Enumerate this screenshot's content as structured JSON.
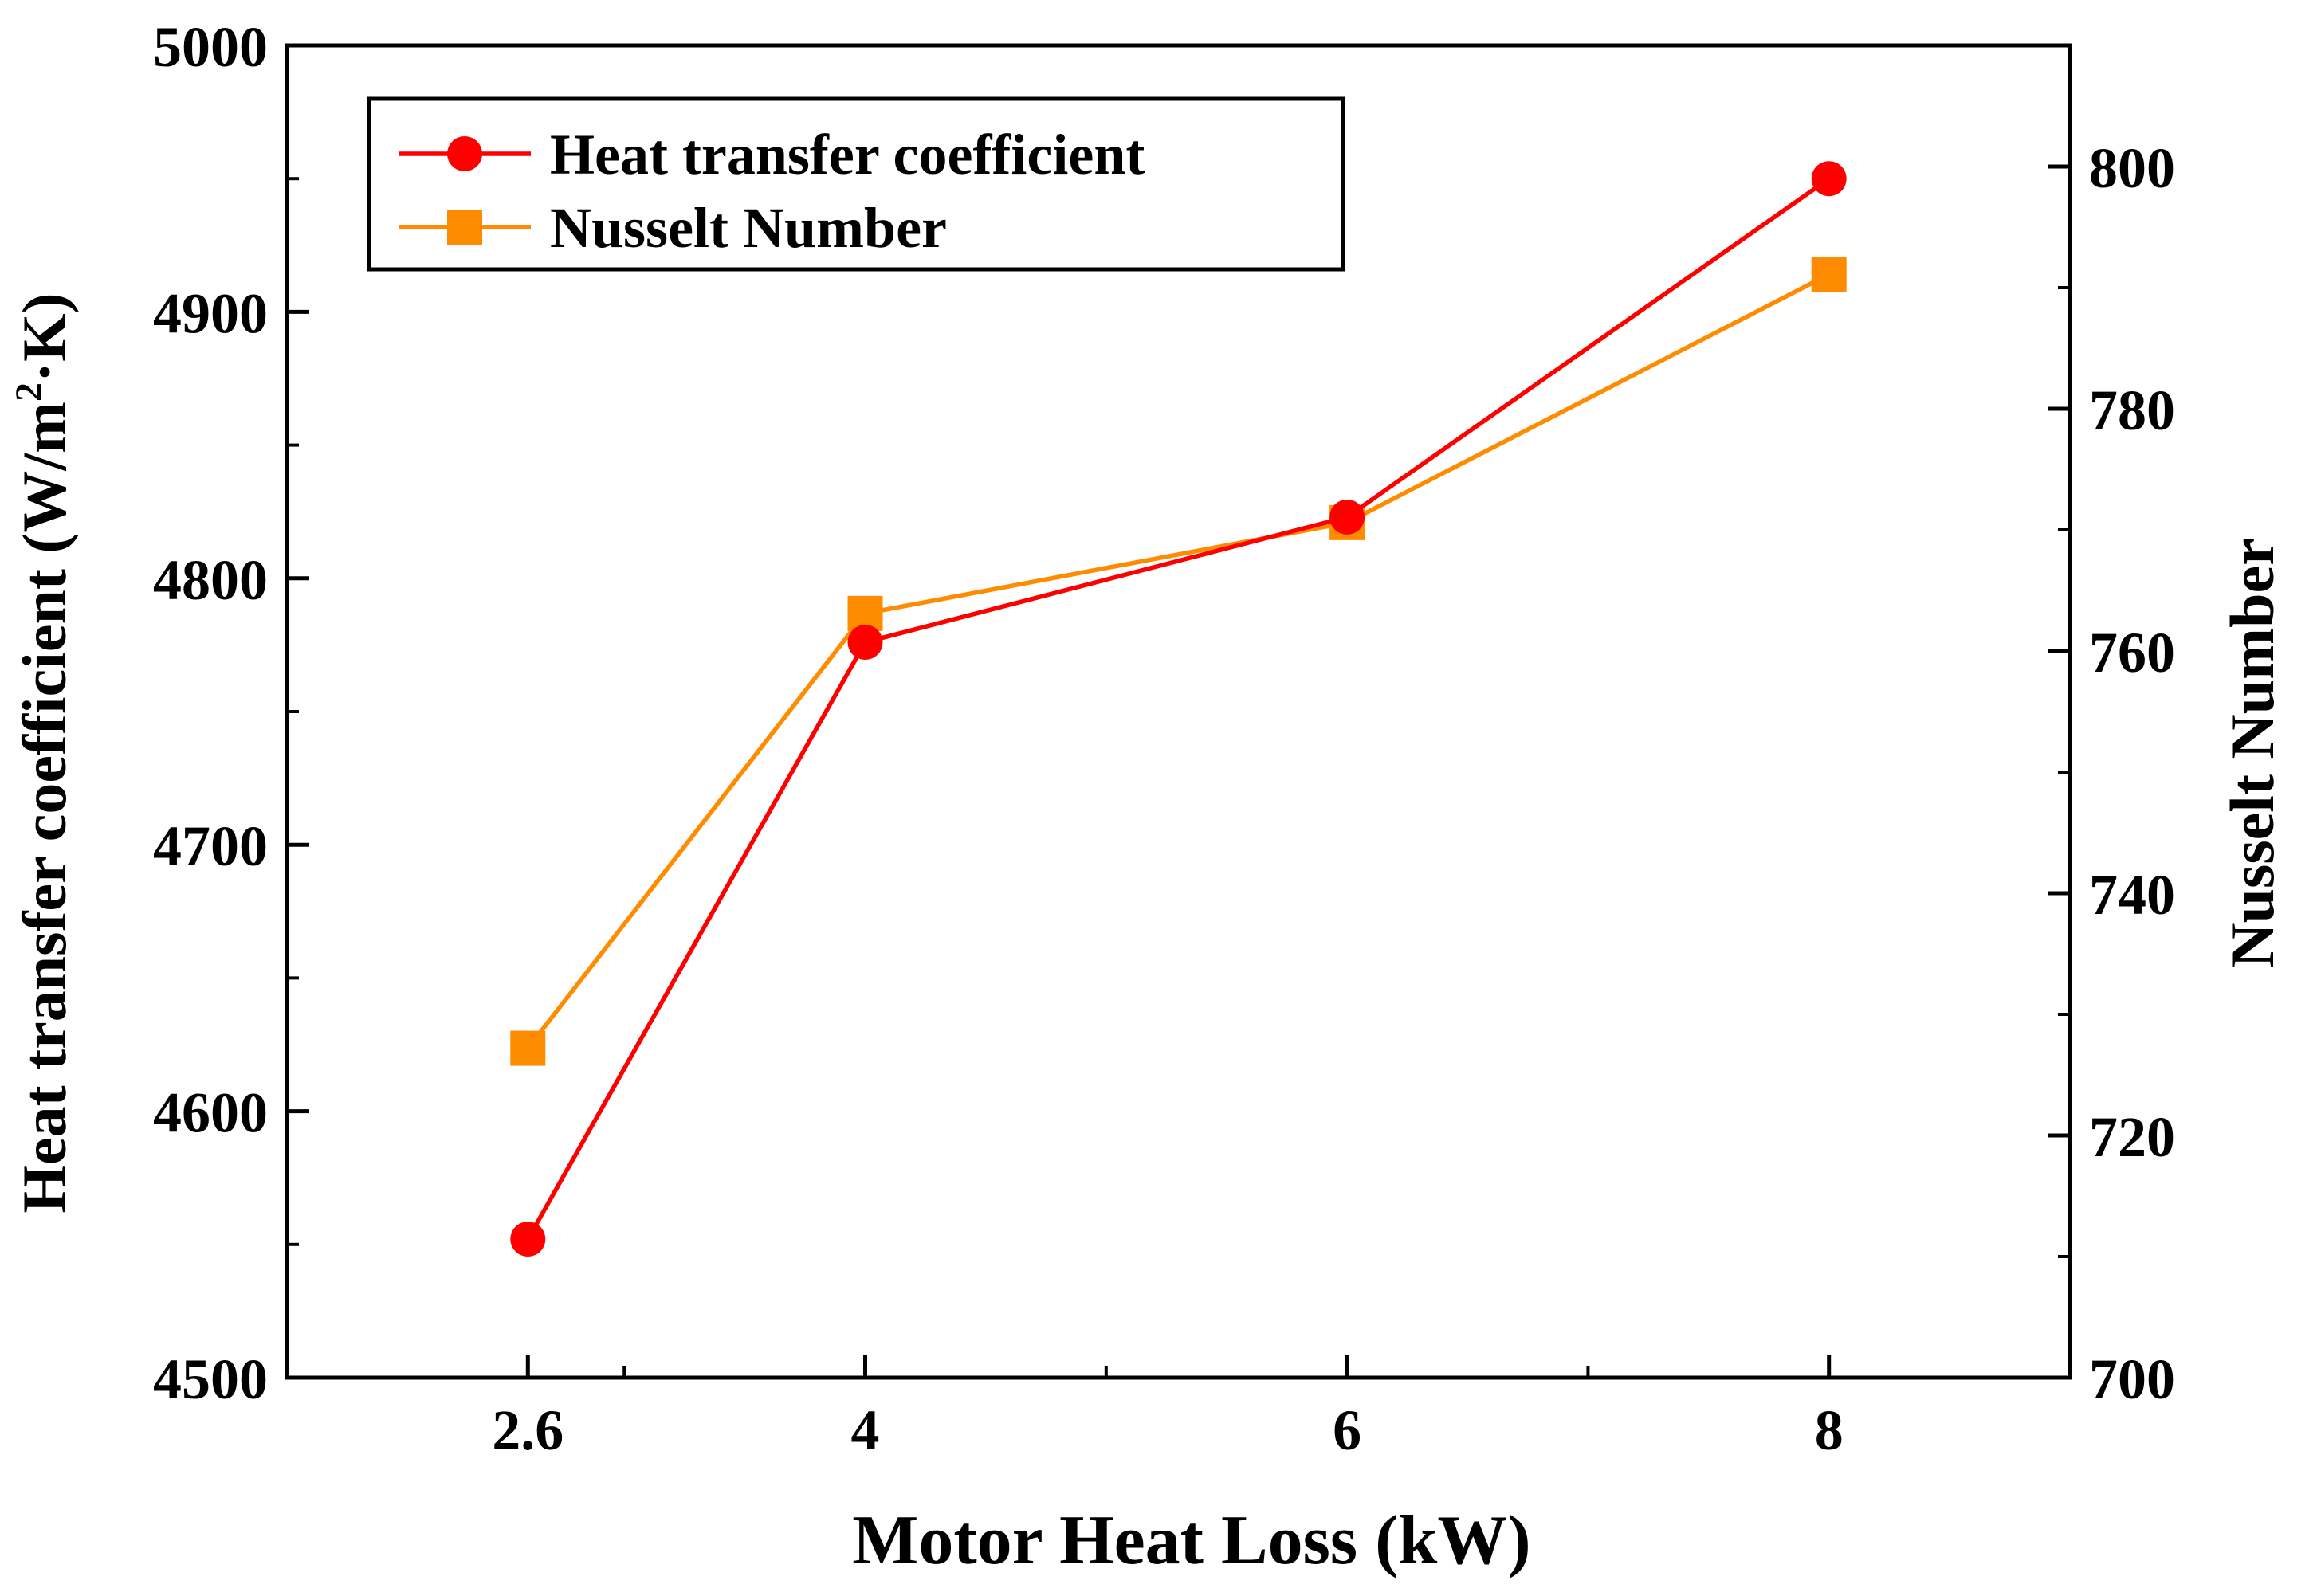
{
  "chart_data": {
    "type": "line",
    "categories": [
      "2.6",
      "4",
      "6",
      "8"
    ],
    "x": [
      2.6,
      4,
      6,
      8
    ],
    "xlim": [
      1.6,
      9
    ],
    "xlabel": "Motor Heat Loss (kW)",
    "y_left": {
      "label_main": "Heat transfer coefficient (W/m",
      "label_sup": "2",
      "label_tail": "·K)",
      "lim": [
        4500,
        5000
      ],
      "ticks": [
        "4500",
        "4600",
        "4700",
        "4800",
        "4900",
        "5000"
      ]
    },
    "y_right": {
      "label": "Nusselt Number",
      "lim": [
        700,
        810
      ],
      "ticks": [
        "700",
        "720",
        "740",
        "760",
        "780",
        "800"
      ]
    },
    "series": [
      {
        "name": "Heat transfer coefficient",
        "axis": "left",
        "marker": "circle",
        "color": "#ff0000",
        "values": [
          4552,
          4776,
          4823,
          4950
        ]
      },
      {
        "name": "Nusselt Number",
        "axis": "right",
        "marker": "square",
        "color": "#ff8c00",
        "values": [
          727.2,
          763.1,
          770.6,
          791.1
        ]
      }
    ],
    "legend_position": "top-left",
    "grid": false
  }
}
